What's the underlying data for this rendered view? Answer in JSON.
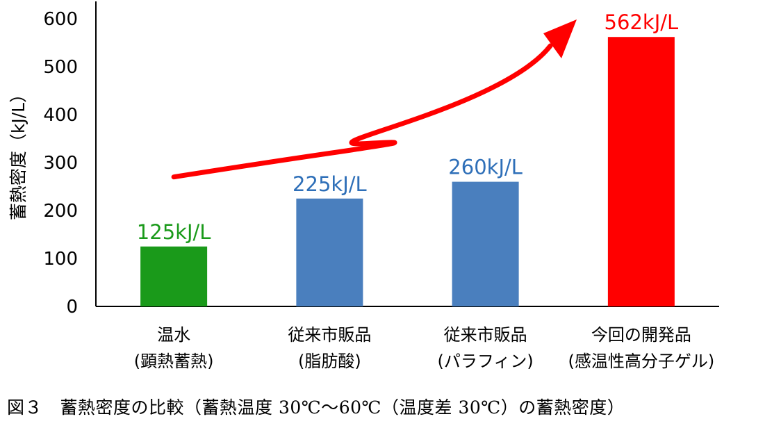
{
  "chart_data": {
    "type": "bar",
    "ylabel": "蓄熱密度（kJ/L）",
    "ylim": [
      0,
      600
    ],
    "yticks": [
      0,
      100,
      200,
      300,
      400,
      500,
      600
    ],
    "categories": [
      [
        "温水",
        "(顕熱蓄熱)"
      ],
      [
        "従来市販品",
        "(脂肪酸)"
      ],
      [
        "従来市販品",
        "(パラフィン)"
      ],
      [
        "今回の開発品",
        "(感温性高分子ゲル)"
      ]
    ],
    "values": [
      125,
      225,
      260,
      562
    ],
    "data_labels": [
      "125kJ/L",
      "225kJ/L",
      "260kJ/L",
      "562kJ/L"
    ],
    "bar_colors": [
      "#1a9a1a",
      "#4a7fbe",
      "#4a7fbe",
      "#ff0000"
    ],
    "label_colors": [
      "#1a9a1a",
      "#2e6fb8",
      "#2e6fb8",
      "#ff0000"
    ],
    "trend_arrow_color": "#ff0000",
    "grid": false,
    "legend": "none"
  },
  "caption": "図３　蓄熱密度の比較（蓄熱温度 30℃～60℃（温度差 30℃）の蓄熱密度）"
}
